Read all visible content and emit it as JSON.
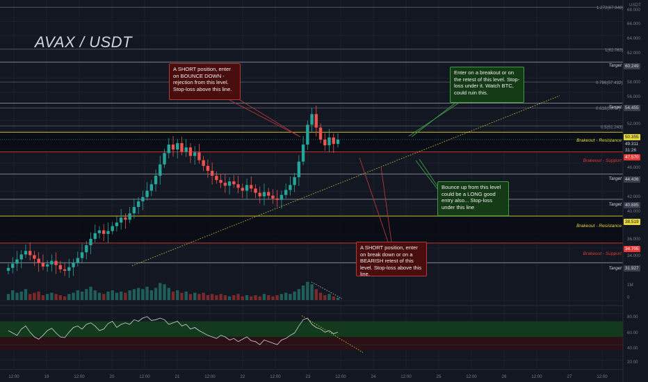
{
  "title": "AVAX / USDT",
  "currency": "USDT",
  "colors": {
    "background": "#131722",
    "up": "#26a69a",
    "down": "#ef5350",
    "resistance": "#e6d73a",
    "support": "#e53935",
    "rsi_line": "#d1d4dc"
  },
  "annotations": {
    "short_top": "A SHORT position, enter on BOUNCE DOWN - rejection from this level. Stop-loss above this line.",
    "long_breakout": "Enter on a breakout or on the retest of this level. Stop-loss under it. Watch BTC, could ruin this.",
    "bounce_long": "Bounce up from this level could be a LONG good entry also... Stop-loss under this line",
    "short_bottom": "A SHORT position, enter on break down or on a BEARISH retest of this level. Stop-loss above this line."
  },
  "level_labels": {
    "target": "Target",
    "brk_res": "Brakeout - Resistance",
    "brk_sup": "Brakeout - Support"
  },
  "price_tags": {
    "t60": "60.249",
    "t54": "54.455",
    "r50": "50.355",
    "cur": "49.311",
    "timer": "31:26",
    "s47": "47.570",
    "t44": "44.436",
    "t40": "40.885",
    "r38": "38.519",
    "s34": "34.705",
    "t31": "31.927"
  },
  "fib_labels": {
    "f1": "1.272(67.949)",
    "f2": "1(62.063)",
    "f3": "0.786(57.432)",
    "f4": "0.618(53.77)",
    "f5": "0.5(51.243)"
  },
  "y_ticks": [
    "68.000",
    "66.000",
    "64.000",
    "62.000",
    "58.000",
    "56.000",
    "52.000",
    "46.000",
    "42.000",
    "40.000",
    "36.000",
    "34.000"
  ],
  "vol_ticks": [
    "1M",
    "0"
  ],
  "rsi_ticks": [
    "80.00",
    "60.00",
    "40.00",
    "20.00"
  ],
  "x_ticks": [
    "12:00",
    "19",
    "12:00",
    "20",
    "12:00",
    "21",
    "12:00",
    "22",
    "12:00",
    "23",
    "12:00",
    "24",
    "12:00",
    "25",
    "12:00",
    "26",
    "12:00",
    "27",
    "12:00"
  ],
  "chart_data": {
    "type": "candlestick",
    "title": "AVAX / USDT",
    "y_unit": "USDT",
    "ylim": [
      30,
      69
    ],
    "x_ticks": [
      "12:00",
      "19",
      "12:00",
      "20",
      "12:00",
      "21",
      "12:00",
      "22",
      "12:00",
      "23",
      "12:00",
      "24",
      "12:00",
      "25",
      "12:00",
      "26",
      "12:00",
      "27",
      "12:00"
    ],
    "close_series": [
      31.2,
      31.8,
      32.4,
      33.1,
      33.6,
      33.0,
      32.5,
      31.9,
      31.4,
      31.7,
      32.2,
      31.6,
      31.0,
      30.8,
      31.3,
      31.9,
      32.6,
      33.4,
      34.4,
      35.3,
      36.1,
      36.5,
      36.0,
      36.4,
      37.1,
      37.6,
      38.3,
      38.0,
      38.9,
      39.8,
      40.6,
      41.2,
      42.1,
      43.0,
      44.2,
      45.8,
      47.4,
      48.6,
      47.9,
      48.8,
      47.6,
      48.2,
      47.0,
      47.5,
      46.4,
      45.6,
      44.9,
      44.2,
      43.6,
      43.2,
      42.8,
      43.4,
      43.0,
      42.5,
      42.1,
      42.9,
      42.4,
      41.8,
      41.3,
      41.9,
      41.4,
      41.0,
      40.8,
      41.5,
      42.2,
      42.9,
      44.0,
      46.2,
      48.6,
      51.4,
      52.9,
      51.0,
      49.3,
      48.5,
      49.6,
      48.7,
      49.3
    ],
    "levels": [
      {
        "label": "Target",
        "value": 60.249,
        "color": "#d1d4dc"
      },
      {
        "label": "Target",
        "value": 54.455,
        "color": "#d1d4dc"
      },
      {
        "label": "Brakeout - Resistance",
        "value": 50.355,
        "color": "#e6d73a"
      },
      {
        "label": "Brakeout - Support",
        "value": 47.57,
        "color": "#e53935"
      },
      {
        "label": "Target",
        "value": 44.436,
        "color": "#d1d4dc"
      },
      {
        "label": "Target",
        "value": 40.885,
        "color": "#d1d4dc"
      },
      {
        "label": "Brakeout - Resistance",
        "value": 38.519,
        "color": "#e6d73a"
      },
      {
        "label": "Brakeout - Support",
        "value": 34.705,
        "color": "#e53935"
      },
      {
        "label": "Target",
        "value": 31.927,
        "color": "#d1d4dc"
      }
    ],
    "fib_levels": [
      {
        "label": "1.272(67.949)",
        "value": 67.949
      },
      {
        "label": "1(62.063)",
        "value": 62.063
      },
      {
        "label": "0.786(57.432)",
        "value": 57.432
      },
      {
        "label": "0.618(53.77)",
        "value": 53.77
      },
      {
        "label": "0.5(51.243)",
        "value": 51.243
      }
    ],
    "current_price": 49.311,
    "volume_series": [
      0.5,
      0.8,
      0.6,
      0.7,
      0.9,
      0.5,
      0.6,
      0.7,
      0.4,
      0.5,
      0.6,
      0.5,
      0.4,
      0.3,
      0.5,
      0.6,
      0.8,
      0.7,
      0.9,
      1.1,
      0.8,
      0.6,
      0.5,
      0.7,
      0.8,
      0.6,
      0.7,
      0.6,
      0.8,
      0.9,
      1.0,
      0.9,
      1.1,
      0.8,
      1.0,
      1.4,
      1.3,
      1.0,
      0.7,
      0.8,
      0.6,
      0.7,
      0.5,
      0.6,
      0.5,
      0.6,
      0.4,
      0.5,
      0.4,
      0.5,
      0.4,
      0.3,
      0.4,
      0.5,
      0.3,
      0.4,
      0.3,
      0.4,
      0.3,
      0.5,
      0.4,
      0.3,
      0.4,
      0.5,
      0.6,
      0.5,
      0.7,
      0.9,
      1.2,
      1.5,
      1.3,
      0.9,
      0.6,
      0.4,
      0.5,
      0.3,
      0.2
    ],
    "rsi_series": [
      58,
      55,
      52,
      60,
      64,
      56,
      50,
      47,
      52,
      58,
      61,
      55,
      50,
      49,
      56,
      62,
      64,
      60,
      66,
      68,
      64,
      58,
      60,
      67,
      70,
      62,
      66,
      68,
      66,
      72,
      70,
      74,
      76,
      71,
      72,
      74,
      72,
      66,
      68,
      70,
      64,
      66,
      60,
      62,
      58,
      55,
      52,
      50,
      48,
      52,
      50,
      46,
      48,
      44,
      47,
      50,
      45,
      44,
      40,
      46,
      44,
      42,
      40,
      46,
      48,
      52,
      55,
      64,
      72,
      74,
      66,
      62,
      60,
      56,
      58,
      54,
      56
    ],
    "rsi_bands": {
      "upper": 70,
      "lower": 50
    },
    "grid": true
  }
}
